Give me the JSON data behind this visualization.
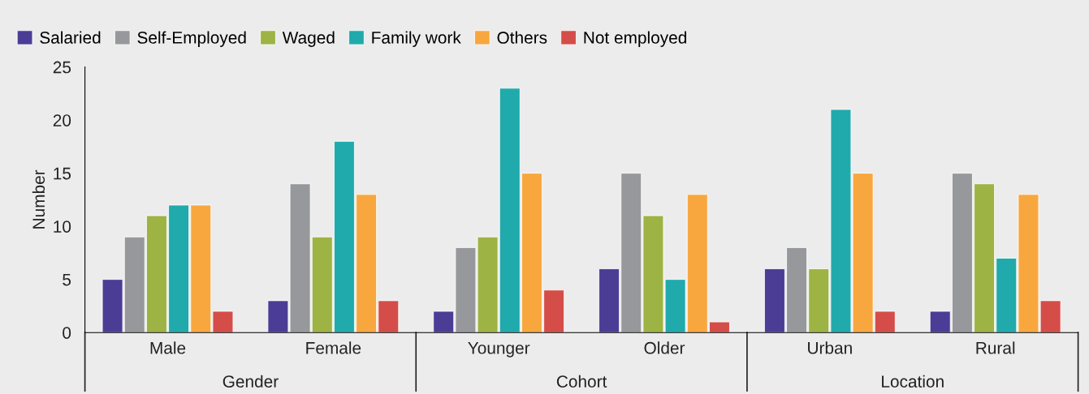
{
  "chart_data": {
    "type": "bar",
    "ylabel": "Number",
    "categories": [
      "Male",
      "Female",
      "Younger",
      "Older",
      "Urban",
      "Rural"
    ],
    "annotations": [
      "Gender",
      "Cohort",
      "Location"
    ],
    "series": [
      {
        "name": "Salaried",
        "color": "#4b3d96",
        "values": [
          5,
          3,
          2,
          6,
          6,
          2
        ]
      },
      {
        "name": "Self-Employed",
        "color": "#97989b",
        "values": [
          9,
          14,
          8,
          15,
          8,
          15
        ]
      },
      {
        "name": "Waged",
        "color": "#9db344",
        "values": [
          11,
          9,
          9,
          11,
          6,
          14
        ]
      },
      {
        "name": "Family work",
        "color": "#20aaac",
        "values": [
          12,
          18,
          23,
          5,
          21,
          7
        ]
      },
      {
        "name": "Others",
        "color": "#f8a73f",
        "values": [
          12,
          13,
          15,
          13,
          15,
          13
        ]
      },
      {
        "name": "Not employed",
        "color": "#d44d48",
        "values": [
          2,
          3,
          4,
          1,
          2,
          3
        ]
      }
    ],
    "ylim": [
      0,
      25
    ],
    "yticks": [
      0,
      5,
      10,
      15,
      20,
      25
    ],
    "grid": false,
    "legend": "top left"
  }
}
